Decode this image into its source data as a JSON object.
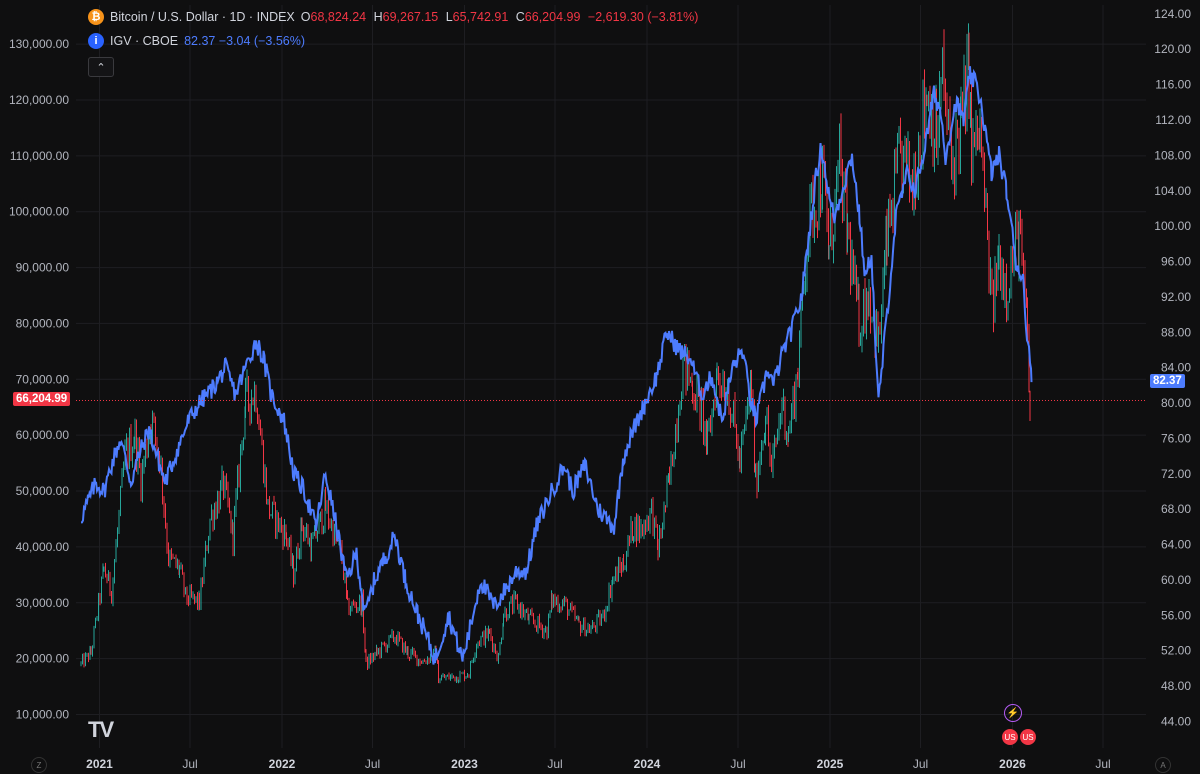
{
  "legend": {
    "main": {
      "icon": "bitcoin-icon",
      "icon_color": "#f7931a",
      "title": "Bitcoin / U.S. Dollar · 1D · INDEX",
      "o_key": "O",
      "o_val": "68,824.24",
      "h_key": "H",
      "h_val": "69,267.15",
      "l_key": "L",
      "l_val": "65,742.91",
      "c_key": "C",
      "c_val": "66,204.99",
      "change": "−2,619.30 (−3.81%)"
    },
    "compare": {
      "icon": "info-icon",
      "icon_color": "#2962ff",
      "title": "IGV · CBOE",
      "value": "82.37 −3.04 (−3.56%)",
      "color": "#4d7cfe"
    },
    "collapse_label": "⌃"
  },
  "price_tags": {
    "left": "66,204.99",
    "left_color": "#f23645",
    "right": "82.37",
    "right_color": "#4d7cfe"
  },
  "branding": {
    "logo_text": "TV"
  },
  "corner_buttons": {
    "left": "Z",
    "right": "A"
  },
  "colors": {
    "background": "#0f0f10",
    "grid": "#1e1e22",
    "up": "#26a69a",
    "down": "#f23645",
    "compare_line": "#4d7cfe",
    "axis_text": "#b2b5be"
  },
  "chart_data": {
    "type": "line",
    "series": [
      {
        "name": "Bitcoin / U.S. Dollar · 1D · INDEX",
        "axis": "left",
        "style": "candles",
        "points": [
          [
            "2020-11-25",
            19000
          ],
          [
            "2020-12-15",
            21000
          ],
          [
            "2021-01-10",
            36000
          ],
          [
            "2021-01-25",
            32000
          ],
          [
            "2021-02-21",
            56000
          ],
          [
            "2021-03-13",
            60000
          ],
          [
            "2021-03-25",
            52000
          ],
          [
            "2021-04-14",
            63000
          ],
          [
            "2021-05-01",
            57000
          ],
          [
            "2021-05-19",
            38000
          ],
          [
            "2021-06-10",
            36000
          ],
          [
            "2021-06-22",
            31000
          ],
          [
            "2021-07-20",
            30000
          ],
          [
            "2021-08-10",
            45000
          ],
          [
            "2021-09-06",
            51000
          ],
          [
            "2021-09-25",
            42000
          ],
          [
            "2021-10-20",
            66000
          ],
          [
            "2021-11-10",
            68000
          ],
          [
            "2021-12-04",
            47000
          ],
          [
            "2022-01-10",
            42000
          ],
          [
            "2022-01-24",
            35000
          ],
          [
            "2022-02-10",
            44000
          ],
          [
            "2022-03-01",
            40000
          ],
          [
            "2022-03-29",
            47000
          ],
          [
            "2022-05-01",
            38000
          ],
          [
            "2022-05-12",
            29000
          ],
          [
            "2022-06-10",
            30000
          ],
          [
            "2022-06-18",
            19000
          ],
          [
            "2022-07-10",
            21000
          ],
          [
            "2022-08-15",
            24000
          ],
          [
            "2022-09-10",
            21000
          ],
          [
            "2022-10-10",
            19500
          ],
          [
            "2022-11-05",
            21000
          ],
          [
            "2022-11-10",
            16500
          ],
          [
            "2022-12-20",
            16800
          ],
          [
            "2023-01-10",
            17500
          ],
          [
            "2023-01-25",
            23000
          ],
          [
            "2023-02-20",
            24500
          ],
          [
            "2023-03-10",
            20000
          ],
          [
            "2023-03-20",
            28000
          ],
          [
            "2023-04-14",
            30000
          ],
          [
            "2023-05-10",
            27000
          ],
          [
            "2023-06-15",
            25000
          ],
          [
            "2023-06-25",
            30500
          ],
          [
            "2023-07-20",
            29800
          ],
          [
            "2023-08-18",
            26000
          ],
          [
            "2023-09-11",
            25200
          ],
          [
            "2023-10-05",
            27500
          ],
          [
            "2023-10-24",
            34000
          ],
          [
            "2023-11-15",
            37000
          ],
          [
            "2023-12-05",
            44000
          ],
          [
            "2023-12-20",
            43000
          ],
          [
            "2024-01-10",
            46500
          ],
          [
            "2024-01-23",
            39500
          ],
          [
            "2024-02-15",
            52000
          ],
          [
            "2024-03-13",
            73000
          ],
          [
            "2024-04-01",
            69000
          ],
          [
            "2024-04-20",
            64000
          ],
          [
            "2024-05-01",
            58000
          ],
          [
            "2024-05-20",
            71000
          ],
          [
            "2024-06-10",
            69000
          ],
          [
            "2024-07-05",
            55000
          ],
          [
            "2024-07-28",
            69000
          ],
          [
            "2024-08-05",
            51000
          ],
          [
            "2024-08-25",
            64000
          ],
          [
            "2024-09-06",
            53000
          ],
          [
            "2024-09-27",
            66000
          ],
          [
            "2024-10-10",
            60000
          ],
          [
            "2024-10-29",
            72000
          ],
          [
            "2024-11-13",
            92000
          ],
          [
            "2024-11-22",
            99000
          ],
          [
            "2024-12-17",
            106000
          ],
          [
            "2024-12-30",
            93000
          ],
          [
            "2025-01-20",
            108000
          ],
          [
            "2025-02-05",
            96000
          ],
          [
            "2025-02-28",
            80000
          ],
          [
            "2025-03-20",
            86000
          ],
          [
            "2025-04-08",
            76000
          ],
          [
            "2025-04-25",
            95000
          ],
          [
            "2025-05-22",
            110000
          ],
          [
            "2025-06-15",
            105000
          ],
          [
            "2025-07-14",
            122000
          ],
          [
            "2025-08-02",
            113000
          ],
          [
            "2025-08-14",
            124000
          ],
          [
            "2025-09-01",
            108000
          ],
          [
            "2025-09-20",
            116000
          ],
          [
            "2025-10-06",
            125000
          ],
          [
            "2025-10-11",
            110000
          ],
          [
            "2025-10-28",
            114000
          ],
          [
            "2025-11-21",
            82000
          ],
          [
            "2025-12-05",
            92000
          ],
          [
            "2025-12-20",
            87000
          ],
          [
            "2026-01-14",
            96000
          ],
          [
            "2026-01-31",
            78000
          ],
          [
            "2026-02-05",
            63000
          ],
          [
            "2026-02-08",
            66205
          ]
        ]
      },
      {
        "name": "IGV · CBOE",
        "axis": "right",
        "style": "line",
        "points": [
          [
            "2020-11-25",
            67
          ],
          [
            "2020-12-10",
            69
          ],
          [
            "2020-12-25",
            71
          ],
          [
            "2021-01-10",
            70
          ],
          [
            "2021-01-25",
            73
          ],
          [
            "2021-02-12",
            76
          ],
          [
            "2021-03-05",
            71
          ],
          [
            "2021-03-20",
            74
          ],
          [
            "2021-04-10",
            77
          ],
          [
            "2021-05-12",
            71
          ],
          [
            "2021-06-01",
            74
          ],
          [
            "2021-06-28",
            78
          ],
          [
            "2021-07-20",
            80
          ],
          [
            "2021-08-20",
            82
          ],
          [
            "2021-09-10",
            84
          ],
          [
            "2021-09-30",
            81
          ],
          [
            "2021-10-20",
            84
          ],
          [
            "2021-11-10",
            87
          ],
          [
            "2021-11-25",
            85
          ],
          [
            "2021-12-10",
            81
          ],
          [
            "2022-01-05",
            78
          ],
          [
            "2022-01-25",
            72
          ],
          [
            "2022-02-15",
            70
          ],
          [
            "2022-03-10",
            66
          ],
          [
            "2022-03-29",
            72
          ],
          [
            "2022-04-20",
            66
          ],
          [
            "2022-05-10",
            60
          ],
          [
            "2022-05-30",
            63
          ],
          [
            "2022-06-16",
            56
          ],
          [
            "2022-07-05",
            60
          ],
          [
            "2022-08-15",
            65
          ],
          [
            "2022-09-05",
            60
          ],
          [
            "2022-09-30",
            56
          ],
          [
            "2022-10-15",
            54
          ],
          [
            "2022-11-03",
            51
          ],
          [
            "2022-11-30",
            56
          ],
          [
            "2022-12-28",
            51
          ],
          [
            "2023-01-10",
            54
          ],
          [
            "2023-02-02",
            60
          ],
          [
            "2023-03-01",
            57
          ],
          [
            "2023-03-25",
            59
          ],
          [
            "2023-04-15",
            61
          ],
          [
            "2023-05-05",
            61
          ],
          [
            "2023-05-25",
            66
          ],
          [
            "2023-06-16",
            69
          ],
          [
            "2023-07-20",
            73
          ],
          [
            "2023-08-05",
            70
          ],
          [
            "2023-08-30",
            73
          ],
          [
            "2023-09-25",
            68
          ],
          [
            "2023-10-27",
            66
          ],
          [
            "2023-11-15",
            74
          ],
          [
            "2023-12-05",
            77
          ],
          [
            "2023-12-28",
            80
          ],
          [
            "2024-01-20",
            83
          ],
          [
            "2024-02-10",
            88
          ],
          [
            "2024-03-05",
            86
          ],
          [
            "2024-03-28",
            85
          ],
          [
            "2024-04-19",
            81
          ],
          [
            "2024-05-10",
            83
          ],
          [
            "2024-05-30",
            78
          ],
          [
            "2024-06-20",
            84
          ],
          [
            "2024-07-10",
            86
          ],
          [
            "2024-07-24",
            81
          ],
          [
            "2024-08-06",
            78
          ],
          [
            "2024-08-30",
            84
          ],
          [
            "2024-09-10",
            82
          ],
          [
            "2024-09-30",
            86
          ],
          [
            "2024-10-15",
            88
          ],
          [
            "2024-11-05",
            92
          ],
          [
            "2024-11-20",
            99
          ],
          [
            "2024-12-05",
            106
          ],
          [
            "2024-12-15",
            109
          ],
          [
            "2024-12-31",
            103
          ],
          [
            "2025-01-10",
            101
          ],
          [
            "2025-01-25",
            104
          ],
          [
            "2025-02-14",
            108
          ],
          [
            "2025-03-01",
            101
          ],
          [
            "2025-03-13",
            94
          ],
          [
            "2025-03-25",
            97
          ],
          [
            "2025-04-04",
            84
          ],
          [
            "2025-04-08",
            80
          ],
          [
            "2025-04-25",
            90
          ],
          [
            "2025-05-13",
            101
          ],
          [
            "2025-06-05",
            106
          ],
          [
            "2025-06-20",
            104
          ],
          [
            "2025-07-10",
            109
          ],
          [
            "2025-07-28",
            115
          ],
          [
            "2025-08-10",
            113
          ],
          [
            "2025-08-20",
            108
          ],
          [
            "2025-09-10",
            114
          ],
          [
            "2025-09-25",
            112
          ],
          [
            "2025-10-08",
            117
          ],
          [
            "2025-10-20",
            116
          ],
          [
            "2025-10-30",
            114
          ],
          [
            "2025-11-20",
            106
          ],
          [
            "2025-12-05",
            108
          ],
          [
            "2025-12-20",
            104
          ],
          [
            "2026-01-08",
            96
          ],
          [
            "2026-01-22",
            94
          ],
          [
            "2026-01-30",
            88
          ],
          [
            "2026-02-08",
            82.37
          ]
        ]
      }
    ],
    "x_range": [
      "2020-11-15",
      "2026-09-25"
    ],
    "x_ticks": [
      {
        "date": "2021-01-01",
        "label": "2021"
      },
      {
        "date": "2021-07-01",
        "label": "Jul"
      },
      {
        "date": "2022-01-01",
        "label": "2022"
      },
      {
        "date": "2022-07-01",
        "label": "Jul"
      },
      {
        "date": "2023-01-01",
        "label": "2023"
      },
      {
        "date": "2023-07-01",
        "label": "Jul"
      },
      {
        "date": "2024-01-01",
        "label": "2024"
      },
      {
        "date": "2024-07-01",
        "label": "Jul"
      },
      {
        "date": "2025-01-01",
        "label": "2025"
      },
      {
        "date": "2025-07-01",
        "label": "Jul"
      },
      {
        "date": "2026-01-01",
        "label": "2026"
      },
      {
        "date": "2026-07-01",
        "label": "Jul"
      }
    ],
    "left_axis": {
      "range": [
        4000,
        137000
      ],
      "ticks": [
        {
          "value": 10000,
          "label": "10,000.00"
        },
        {
          "value": 20000,
          "label": "20,000.00"
        },
        {
          "value": 30000,
          "label": "30,000.00"
        },
        {
          "value": 40000,
          "label": "40,000.00"
        },
        {
          "value": 50000,
          "label": "50,000.00"
        },
        {
          "value": 60000,
          "label": "60,000.00"
        },
        {
          "value": 70000,
          "label": "70,000.00"
        },
        {
          "value": 80000,
          "label": "80,000.00"
        },
        {
          "value": 90000,
          "label": "90,000.00"
        },
        {
          "value": 100000,
          "label": "100,000.00"
        },
        {
          "value": 110000,
          "label": "110,000.00"
        },
        {
          "value": 120000,
          "label": "120,000.00"
        },
        {
          "value": 130000,
          "label": "130,000.00"
        }
      ]
    },
    "right_axis": {
      "range": [
        41.0,
        125.0
      ],
      "ticks": [
        {
          "value": 44,
          "label": "44.00"
        },
        {
          "value": 48,
          "label": "48.00"
        },
        {
          "value": 52,
          "label": "52.00"
        },
        {
          "value": 56,
          "label": "56.00"
        },
        {
          "value": 60,
          "label": "60.00"
        },
        {
          "value": 64,
          "label": "64.00"
        },
        {
          "value": 68,
          "label": "68.00"
        },
        {
          "value": 72,
          "label": "72.00"
        },
        {
          "value": 76,
          "label": "76.00"
        },
        {
          "value": 80,
          "label": "80.00"
        },
        {
          "value": 84,
          "label": "84.00"
        },
        {
          "value": 88,
          "label": "88.00"
        },
        {
          "value": 92,
          "label": "92.00"
        },
        {
          "value": 96,
          "label": "96.00"
        },
        {
          "value": 100,
          "label": "100.00"
        },
        {
          "value": 104,
          "label": "104.00"
        },
        {
          "value": 108,
          "label": "108.00"
        },
        {
          "value": 112,
          "label": "112.00"
        },
        {
          "value": 116,
          "label": "116.00"
        },
        {
          "value": 120,
          "label": "120.00"
        },
        {
          "value": 124,
          "label": "124.00"
        }
      ]
    },
    "last_price_line": 66204.99,
    "grid": true
  }
}
